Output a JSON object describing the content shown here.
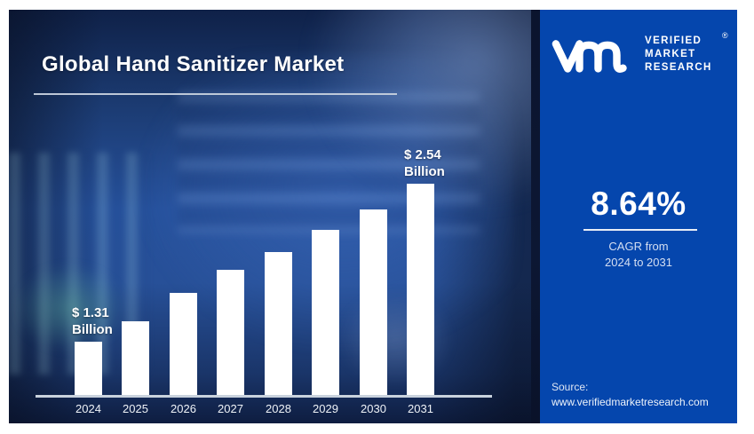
{
  "left_panel": {
    "title": "Global Hand Sanitizer Market"
  },
  "right_panel": {
    "cagr_value": "8.64%",
    "cagr_caption_line1": "CAGR from",
    "cagr_caption_line2": "2024 to 2031",
    "source_label": "Source:",
    "source_url": "www.verifiedmarketresearch.com"
  },
  "brand": {
    "monogram": "vm-monogram",
    "name_lines": [
      "VERIFIED",
      "MARKET",
      "RESEARCH"
    ],
    "registered_mark": "®"
  },
  "colors": {
    "brand_blue": "#0546ad",
    "panel_navy": "#16305f",
    "bar_fill": "#ffffff",
    "axis_line": "#c9d2dd",
    "text_white": "#ffffff"
  },
  "chart_data": {
    "type": "bar",
    "title": "Global Hand Sanitizer Market",
    "categories": [
      "2024",
      "2025",
      "2026",
      "2027",
      "2028",
      "2029",
      "2030",
      "2031"
    ],
    "values": [
      1.31,
      1.47,
      1.69,
      1.87,
      2.01,
      2.18,
      2.34,
      2.54
    ],
    "unit": "USD Billion",
    "xlabel": "",
    "ylabel": "",
    "grid": false,
    "legend": false,
    "y_axis_shown": false,
    "value_labels_shown_for": [
      "2024",
      "2031"
    ],
    "bar_color": "#ffffff",
    "annotations": [
      {
        "category": "2024",
        "lines": [
          "$ 1.31",
          "Billion"
        ]
      },
      {
        "category": "2031",
        "lines": [
          "$ 2.54",
          "Billion"
        ]
      }
    ]
  }
}
